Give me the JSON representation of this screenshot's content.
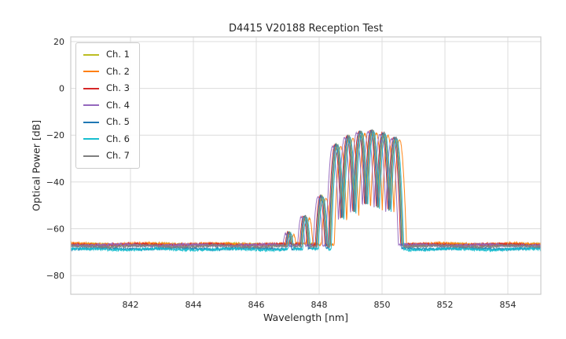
{
  "chart_data": {
    "type": "line",
    "title": "D4415 V20188 Reception Test",
    "xlabel": "Wavelength [nm]",
    "ylabel": "Optical Power [dB]",
    "xlim": [
      840.1,
      855.05
    ],
    "ylim": [
      -88,
      22
    ],
    "xticks": [
      842,
      844,
      846,
      848,
      850,
      852,
      854
    ],
    "yticks": [
      20,
      0,
      -20,
      -40,
      -60,
      -80
    ],
    "grid": true,
    "legend_position": "upper left",
    "noise": {
      "floor_db": -67.0,
      "amplitude_db": 0.6
    },
    "envelope_lobes": [
      {
        "center": 847.05,
        "peak": -61.5,
        "sharpness": 900
      },
      {
        "center": 847.55,
        "peak": -54.5,
        "sharpness": 900
      },
      {
        "center": 848.08,
        "peak": -46.0,
        "sharpness": 900
      },
      {
        "center": 848.55,
        "peak": -24.0,
        "sharpness": 950
      },
      {
        "center": 848.93,
        "peak": -20.5,
        "sharpness": 950
      },
      {
        "center": 849.31,
        "peak": -18.5,
        "sharpness": 950
      },
      {
        "center": 849.68,
        "peak": -18.0,
        "sharpness": 950
      },
      {
        "center": 850.05,
        "peak": -19.0,
        "sharpness": 950
      },
      {
        "center": 850.42,
        "peak": -21.0,
        "sharpness": 950
      }
    ],
    "series": [
      {
        "name": "Ch. 1",
        "color": "#bcbd22",
        "dx": 0.0,
        "floor_offset": 0.3,
        "peak_offset": 0
      },
      {
        "name": "Ch. 2",
        "color": "#ff7f0e",
        "dx": 0.14,
        "floor_offset": 0.5,
        "peak_offset": -1.0
      },
      {
        "name": "Ch. 3",
        "color": "#d62728",
        "dx": -0.05,
        "floor_offset": 0.2,
        "peak_offset": 0
      },
      {
        "name": "Ch. 4",
        "color": "#9467bd",
        "dx": -0.12,
        "floor_offset": 0.0,
        "peak_offset": -0.5
      },
      {
        "name": "Ch. 5",
        "color": "#1f77b4",
        "dx": -0.02,
        "floor_offset": -1.5,
        "peak_offset": 0
      },
      {
        "name": "Ch. 6",
        "color": "#17becf",
        "dx": 0.05,
        "floor_offset": -1.8,
        "peak_offset": -0.5
      },
      {
        "name": "Ch. 7",
        "color": "#7f7f7f",
        "dx": 0.02,
        "floor_offset": -0.5,
        "peak_offset": 0
      }
    ]
  }
}
